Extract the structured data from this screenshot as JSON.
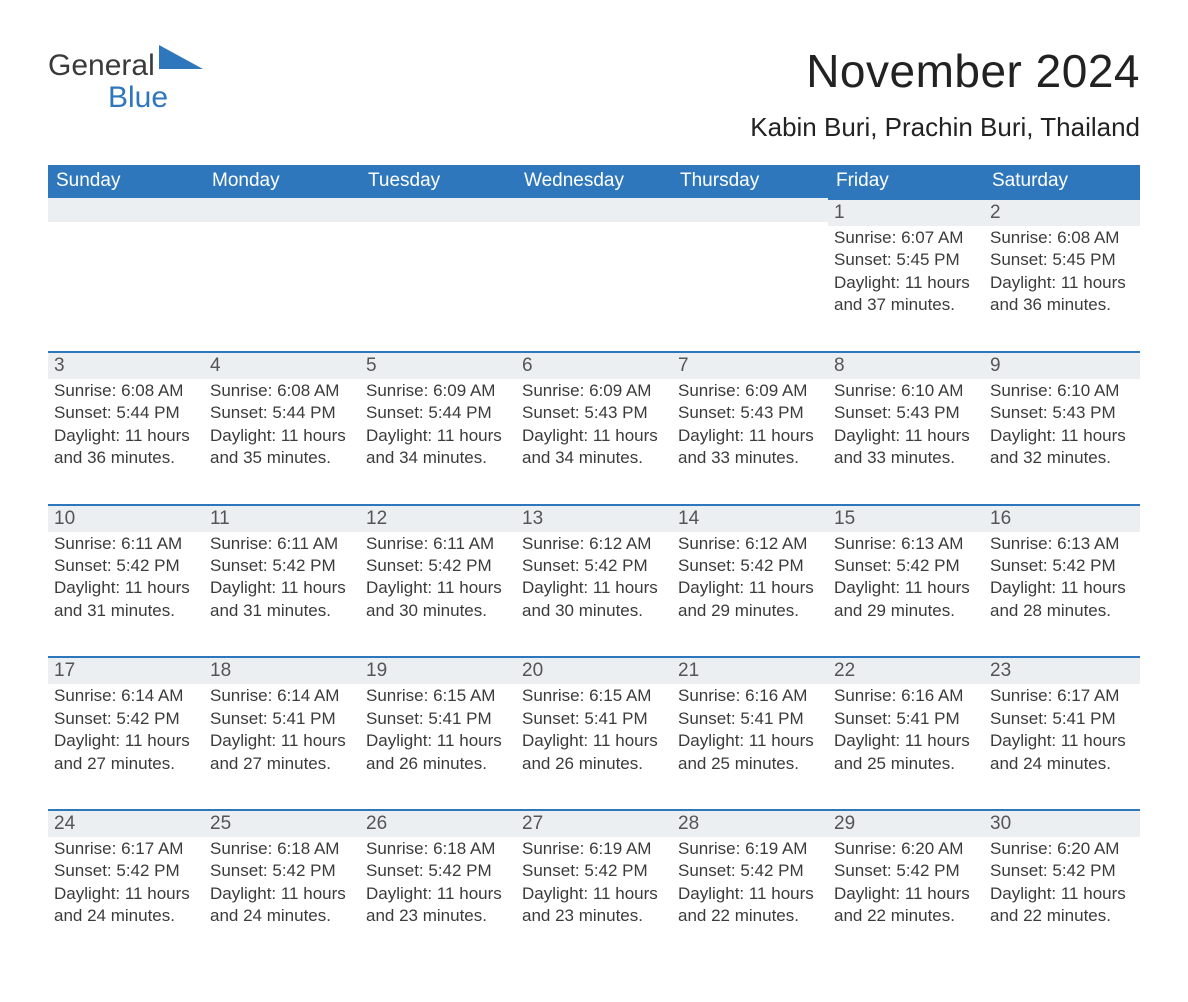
{
  "logo": {
    "word1": "General",
    "word2": "Blue"
  },
  "title": "November 2024",
  "location": "Kabin Buri, Prachin Buri, Thailand",
  "colors": {
    "brand": "#2e77bc",
    "header_bg": "#2e77bc",
    "header_text": "#ffffff",
    "row_bg": "#eceff1",
    "page_bg": "#ffffff",
    "text": "#3a3a3a"
  },
  "table": {
    "type": "calendar",
    "columns": [
      "Sunday",
      "Monday",
      "Tuesday",
      "Wednesday",
      "Thursday",
      "Friday",
      "Saturday"
    ],
    "weeks": [
      [
        {
          "day": "",
          "lines": []
        },
        {
          "day": "",
          "lines": []
        },
        {
          "day": "",
          "lines": []
        },
        {
          "day": "",
          "lines": []
        },
        {
          "day": "",
          "lines": []
        },
        {
          "day": "1",
          "lines": [
            "Sunrise: 6:07 AM",
            "Sunset: 5:45 PM",
            "Daylight: 11 hours and 37 minutes."
          ]
        },
        {
          "day": "2",
          "lines": [
            "Sunrise: 6:08 AM",
            "Sunset: 5:45 PM",
            "Daylight: 11 hours and 36 minutes."
          ]
        }
      ],
      [
        {
          "day": "3",
          "lines": [
            "Sunrise: 6:08 AM",
            "Sunset: 5:44 PM",
            "Daylight: 11 hours and 36 minutes."
          ]
        },
        {
          "day": "4",
          "lines": [
            "Sunrise: 6:08 AM",
            "Sunset: 5:44 PM",
            "Daylight: 11 hours and 35 minutes."
          ]
        },
        {
          "day": "5",
          "lines": [
            "Sunrise: 6:09 AM",
            "Sunset: 5:44 PM",
            "Daylight: 11 hours and 34 minutes."
          ]
        },
        {
          "day": "6",
          "lines": [
            "Sunrise: 6:09 AM",
            "Sunset: 5:43 PM",
            "Daylight: 11 hours and 34 minutes."
          ]
        },
        {
          "day": "7",
          "lines": [
            "Sunrise: 6:09 AM",
            "Sunset: 5:43 PM",
            "Daylight: 11 hours and 33 minutes."
          ]
        },
        {
          "day": "8",
          "lines": [
            "Sunrise: 6:10 AM",
            "Sunset: 5:43 PM",
            "Daylight: 11 hours and 33 minutes."
          ]
        },
        {
          "day": "9",
          "lines": [
            "Sunrise: 6:10 AM",
            "Sunset: 5:43 PM",
            "Daylight: 11 hours and 32 minutes."
          ]
        }
      ],
      [
        {
          "day": "10",
          "lines": [
            "Sunrise: 6:11 AM",
            "Sunset: 5:42 PM",
            "Daylight: 11 hours and 31 minutes."
          ]
        },
        {
          "day": "11",
          "lines": [
            "Sunrise: 6:11 AM",
            "Sunset: 5:42 PM",
            "Daylight: 11 hours and 31 minutes."
          ]
        },
        {
          "day": "12",
          "lines": [
            "Sunrise: 6:11 AM",
            "Sunset: 5:42 PM",
            "Daylight: 11 hours and 30 minutes."
          ]
        },
        {
          "day": "13",
          "lines": [
            "Sunrise: 6:12 AM",
            "Sunset: 5:42 PM",
            "Daylight: 11 hours and 30 minutes."
          ]
        },
        {
          "day": "14",
          "lines": [
            "Sunrise: 6:12 AM",
            "Sunset: 5:42 PM",
            "Daylight: 11 hours and 29 minutes."
          ]
        },
        {
          "day": "15",
          "lines": [
            "Sunrise: 6:13 AM",
            "Sunset: 5:42 PM",
            "Daylight: 11 hours and 29 minutes."
          ]
        },
        {
          "day": "16",
          "lines": [
            "Sunrise: 6:13 AM",
            "Sunset: 5:42 PM",
            "Daylight: 11 hours and 28 minutes."
          ]
        }
      ],
      [
        {
          "day": "17",
          "lines": [
            "Sunrise: 6:14 AM",
            "Sunset: 5:42 PM",
            "Daylight: 11 hours and 27 minutes."
          ]
        },
        {
          "day": "18",
          "lines": [
            "Sunrise: 6:14 AM",
            "Sunset: 5:41 PM",
            "Daylight: 11 hours and 27 minutes."
          ]
        },
        {
          "day": "19",
          "lines": [
            "Sunrise: 6:15 AM",
            "Sunset: 5:41 PM",
            "Daylight: 11 hours and 26 minutes."
          ]
        },
        {
          "day": "20",
          "lines": [
            "Sunrise: 6:15 AM",
            "Sunset: 5:41 PM",
            "Daylight: 11 hours and 26 minutes."
          ]
        },
        {
          "day": "21",
          "lines": [
            "Sunrise: 6:16 AM",
            "Sunset: 5:41 PM",
            "Daylight: 11 hours and 25 minutes."
          ]
        },
        {
          "day": "22",
          "lines": [
            "Sunrise: 6:16 AM",
            "Sunset: 5:41 PM",
            "Daylight: 11 hours and 25 minutes."
          ]
        },
        {
          "day": "23",
          "lines": [
            "Sunrise: 6:17 AM",
            "Sunset: 5:41 PM",
            "Daylight: 11 hours and 24 minutes."
          ]
        }
      ],
      [
        {
          "day": "24",
          "lines": [
            "Sunrise: 6:17 AM",
            "Sunset: 5:42 PM",
            "Daylight: 11 hours and 24 minutes."
          ]
        },
        {
          "day": "25",
          "lines": [
            "Sunrise: 6:18 AM",
            "Sunset: 5:42 PM",
            "Daylight: 11 hours and 24 minutes."
          ]
        },
        {
          "day": "26",
          "lines": [
            "Sunrise: 6:18 AM",
            "Sunset: 5:42 PM",
            "Daylight: 11 hours and 23 minutes."
          ]
        },
        {
          "day": "27",
          "lines": [
            "Sunrise: 6:19 AM",
            "Sunset: 5:42 PM",
            "Daylight: 11 hours and 23 minutes."
          ]
        },
        {
          "day": "28",
          "lines": [
            "Sunrise: 6:19 AM",
            "Sunset: 5:42 PM",
            "Daylight: 11 hours and 22 minutes."
          ]
        },
        {
          "day": "29",
          "lines": [
            "Sunrise: 6:20 AM",
            "Sunset: 5:42 PM",
            "Daylight: 11 hours and 22 minutes."
          ]
        },
        {
          "day": "30",
          "lines": [
            "Sunrise: 6:20 AM",
            "Sunset: 5:42 PM",
            "Daylight: 11 hours and 22 minutes."
          ]
        }
      ]
    ]
  }
}
